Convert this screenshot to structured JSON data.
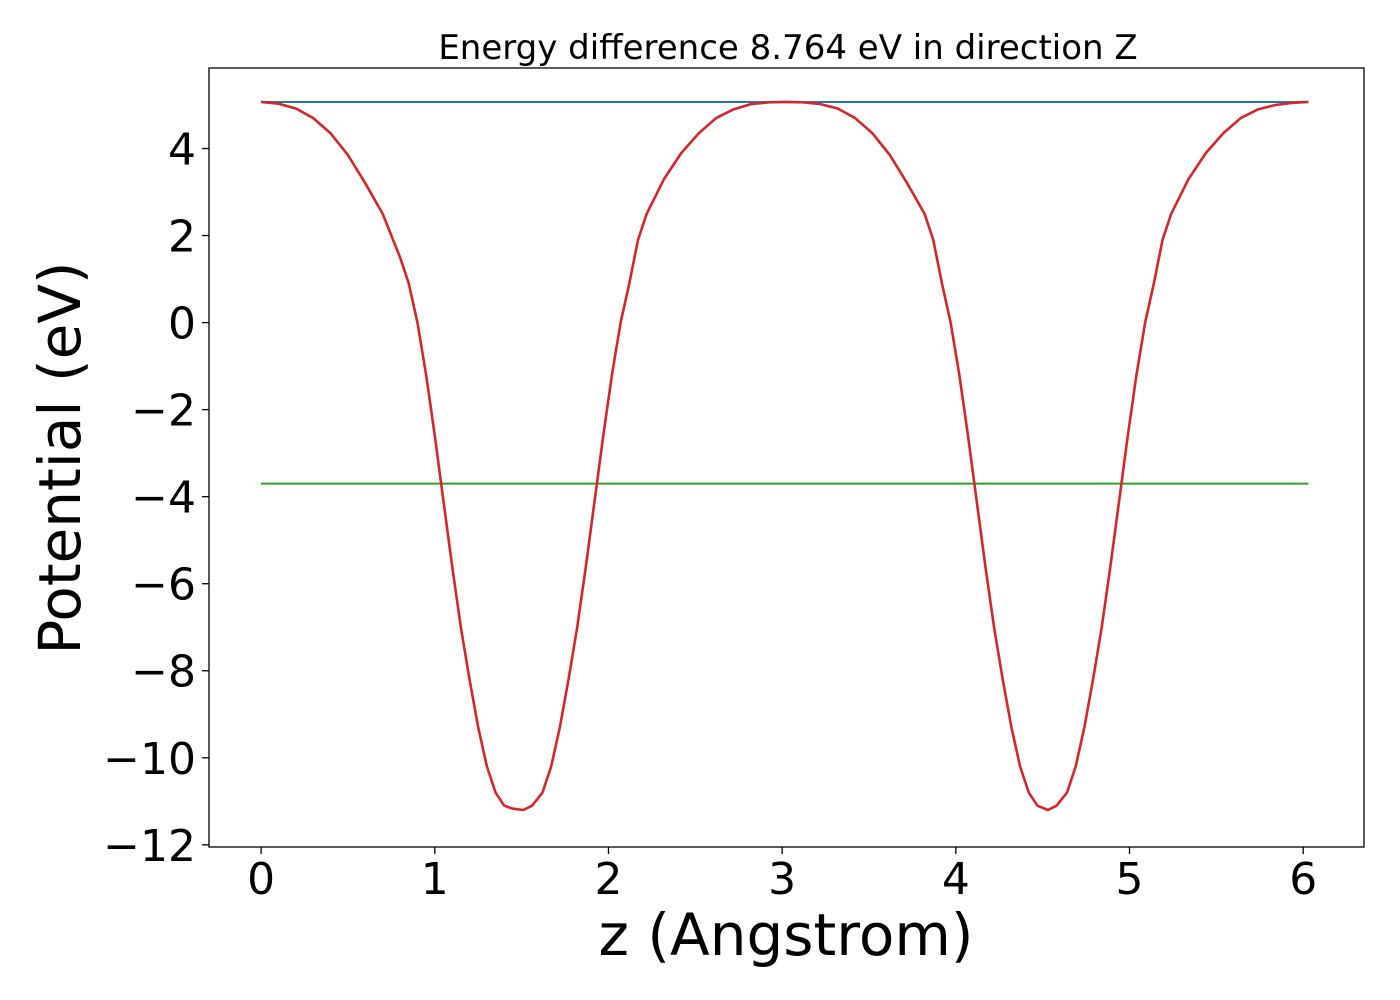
{
  "chart_data": {
    "type": "line",
    "title": "Energy difference 8.764 eV in direction Z",
    "xlabel": "z (Angstrom)",
    "ylabel": "Potential (eV)",
    "xlim": [
      -0.3,
      6.35
    ],
    "ylim": [
      -12.05,
      5.85
    ],
    "xticks": [
      0,
      1,
      2,
      3,
      4,
      5,
      6
    ],
    "yticks": [
      4,
      2,
      0,
      -2,
      -4,
      -6,
      -8,
      -10,
      -12
    ],
    "xtick_labels": [
      "0",
      "1",
      "2",
      "3",
      "4",
      "5",
      "6"
    ],
    "ytick_labels": [
      "4",
      "2",
      "0",
      "−2",
      "−4",
      "−6",
      "−8",
      "−10",
      "−12"
    ],
    "grid": false,
    "series": [
      {
        "color": "#1f77b4",
        "x": [
          0,
          6.03
        ],
        "y": [
          5.07,
          5.07
        ]
      },
      {
        "color": "#2ca02c",
        "x": [
          0,
          6.03
        ],
        "y": [
          -3.7,
          -3.7
        ]
      },
      {
        "color": "#d62728",
        "x": [
          0.0,
          0.1,
          0.2,
          0.3,
          0.4,
          0.5,
          0.6,
          0.7,
          0.8,
          0.85,
          0.9,
          0.95,
          1.0,
          1.05,
          1.1,
          1.15,
          1.2,
          1.25,
          1.3,
          1.35,
          1.4,
          1.45,
          1.51,
          1.56,
          1.62,
          1.67,
          1.72,
          1.77,
          1.82,
          1.87,
          1.92,
          1.97,
          2.02,
          2.07,
          2.12,
          2.17,
          2.22,
          2.32,
          2.42,
          2.52,
          2.62,
          2.72,
          2.82,
          2.92,
          3.02,
          3.12,
          3.22,
          3.32,
          3.42,
          3.52,
          3.62,
          3.72,
          3.82,
          3.87,
          3.92,
          3.97,
          4.02,
          4.07,
          4.12,
          4.17,
          4.22,
          4.27,
          4.32,
          4.37,
          4.42,
          4.47,
          4.53,
          4.58,
          4.64,
          4.69,
          4.74,
          4.79,
          4.84,
          4.89,
          4.94,
          4.99,
          5.04,
          5.09,
          5.14,
          5.19,
          5.24,
          5.34,
          5.44,
          5.54,
          5.64,
          5.74,
          5.84,
          5.94,
          6.03
        ],
        "y": [
          5.07,
          5.03,
          4.92,
          4.7,
          4.35,
          3.85,
          3.2,
          2.5,
          1.5,
          0.9,
          0.0,
          -1.2,
          -2.6,
          -4.1,
          -5.6,
          -7.0,
          -8.2,
          -9.3,
          -10.2,
          -10.8,
          -11.1,
          -11.17,
          -11.2,
          -11.1,
          -10.8,
          -10.2,
          -9.3,
          -8.2,
          -7.0,
          -5.6,
          -4.1,
          -2.6,
          -1.2,
          0.0,
          0.9,
          1.9,
          2.5,
          3.3,
          3.9,
          4.35,
          4.7,
          4.9,
          5.02,
          5.06,
          5.07,
          5.06,
          5.02,
          4.92,
          4.7,
          4.35,
          3.85,
          3.2,
          2.5,
          1.9,
          0.9,
          0.0,
          -1.2,
          -2.6,
          -4.1,
          -5.6,
          -7.0,
          -8.2,
          -9.3,
          -10.2,
          -10.8,
          -11.1,
          -11.2,
          -11.1,
          -10.8,
          -10.2,
          -9.3,
          -8.2,
          -7.0,
          -5.6,
          -4.1,
          -2.6,
          -1.2,
          0.0,
          0.9,
          1.9,
          2.5,
          3.3,
          3.9,
          4.35,
          4.7,
          4.9,
          5.0,
          5.05,
          5.07
        ]
      }
    ]
  }
}
